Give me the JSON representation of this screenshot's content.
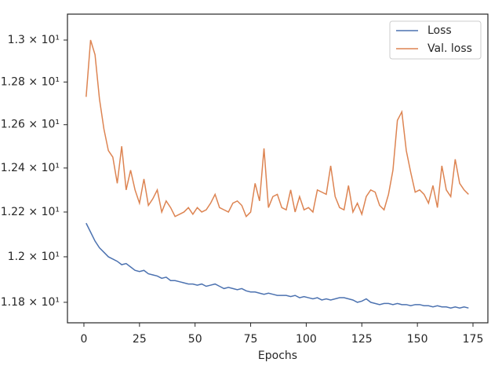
{
  "chart_data": {
    "type": "line",
    "x_label": "Epochs",
    "x": [
      1,
      3,
      5,
      7,
      9,
      11,
      13,
      15,
      17,
      19,
      21,
      23,
      25,
      27,
      29,
      31,
      33,
      35,
      37,
      39,
      41,
      43,
      45,
      47,
      49,
      51,
      53,
      55,
      57,
      59,
      61,
      63,
      65,
      67,
      69,
      71,
      73,
      75,
      77,
      79,
      81,
      83,
      85,
      87,
      89,
      91,
      93,
      95,
      97,
      99,
      101,
      103,
      105,
      107,
      109,
      111,
      113,
      115,
      117,
      119,
      121,
      123,
      125,
      127,
      129,
      131,
      133,
      135,
      137,
      139,
      141,
      143,
      145,
      147,
      149,
      151,
      153,
      155,
      157,
      159,
      161,
      163,
      165,
      167,
      169,
      171,
      173
    ],
    "series": [
      {
        "name": "Loss",
        "color": "#4c72b0",
        "values": [
          12.15,
          12.11,
          12.07,
          12.04,
          12.02,
          12.0,
          11.99,
          11.98,
          11.965,
          11.97,
          11.955,
          11.94,
          11.935,
          11.94,
          11.925,
          11.92,
          11.915,
          11.905,
          11.91,
          11.895,
          11.895,
          11.89,
          11.885,
          11.88,
          11.88,
          11.875,
          11.88,
          11.87,
          11.875,
          11.88,
          11.87,
          11.86,
          11.865,
          11.86,
          11.855,
          11.86,
          11.85,
          11.845,
          11.845,
          11.84,
          11.835,
          11.84,
          11.835,
          11.83,
          11.83,
          11.83,
          11.825,
          11.83,
          11.82,
          11.825,
          11.82,
          11.815,
          11.82,
          11.81,
          11.815,
          11.81,
          11.815,
          11.82,
          11.82,
          11.815,
          11.81,
          11.8,
          11.805,
          11.815,
          11.8,
          11.795,
          11.79,
          11.795,
          11.795,
          11.79,
          11.795,
          11.79,
          11.79,
          11.785,
          11.79,
          11.79,
          11.785,
          11.785,
          11.78,
          11.785,
          11.78,
          11.78,
          11.775,
          11.78,
          11.775,
          11.78,
          11.775
        ]
      },
      {
        "name": "Val. loss",
        "color": "#dd8452",
        "values": [
          12.73,
          13.0,
          12.93,
          12.72,
          12.58,
          12.48,
          12.45,
          12.33,
          12.5,
          12.3,
          12.39,
          12.3,
          12.24,
          12.35,
          12.23,
          12.26,
          12.3,
          12.2,
          12.25,
          12.22,
          12.18,
          12.19,
          12.2,
          12.22,
          12.19,
          12.22,
          12.2,
          12.21,
          12.24,
          12.28,
          12.22,
          12.21,
          12.2,
          12.24,
          12.25,
          12.23,
          12.18,
          12.2,
          12.33,
          12.25,
          12.49,
          12.22,
          12.27,
          12.28,
          12.22,
          12.21,
          12.3,
          12.2,
          12.27,
          12.21,
          12.22,
          12.2,
          12.3,
          12.29,
          12.28,
          12.41,
          12.27,
          12.22,
          12.21,
          12.32,
          12.2,
          12.24,
          12.19,
          12.27,
          12.3,
          12.29,
          12.23,
          12.21,
          12.28,
          12.39,
          12.62,
          12.66,
          12.48,
          12.38,
          12.29,
          12.3,
          12.28,
          12.24,
          12.32,
          12.22,
          12.41,
          12.3,
          12.27,
          12.44,
          12.33,
          12.3,
          12.28
        ]
      }
    ],
    "xlim": [
      -7.4,
      181.7
    ],
    "xticks": [
      0,
      25,
      50,
      75,
      100,
      125,
      150,
      175
    ],
    "ylim": [
      11.711,
      13.125
    ],
    "log_y": true,
    "yticks": [
      {
        "value": 11.8,
        "label": "1.18 × 10¹"
      },
      {
        "value": 12,
        "label": "1.2 × 10¹"
      },
      {
        "value": 12.2,
        "label": "1.22 × 10¹"
      },
      {
        "value": 12.4,
        "label": "1.24 × 10¹"
      },
      {
        "value": 12.6,
        "label": "1.26 × 10¹"
      },
      {
        "value": 12.8,
        "label": "1.28 × 10¹"
      },
      {
        "value": 13,
        "label": "1.3 × 10¹"
      }
    ],
    "legend": "upper right",
    "grid": false
  }
}
